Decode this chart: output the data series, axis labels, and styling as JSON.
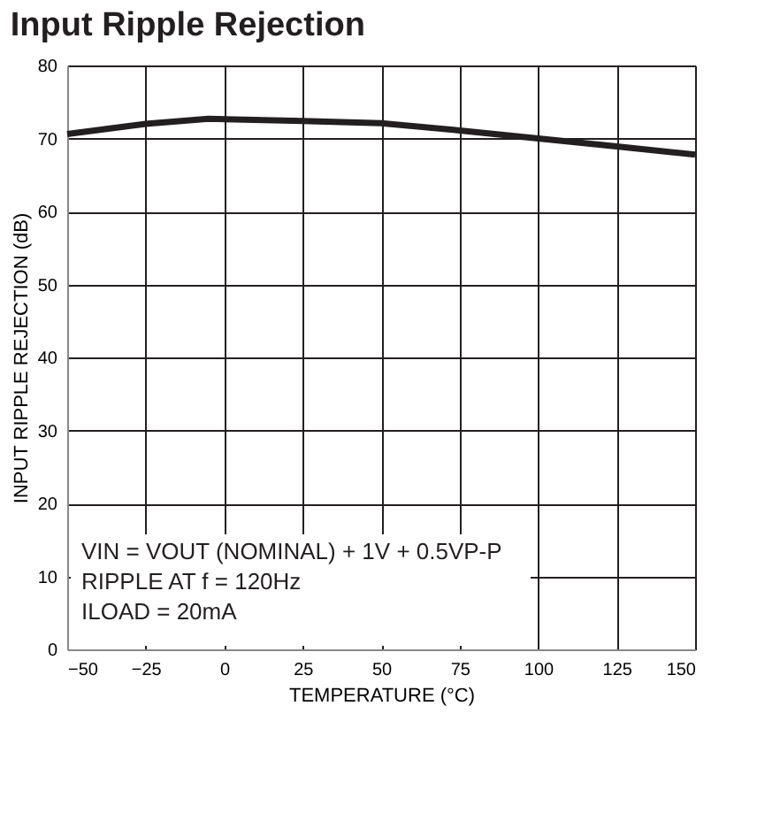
{
  "chart_data": {
    "type": "line",
    "title": "Input Ripple Rejection",
    "xlabel": "TEMPERATURE (°C)",
    "ylabel": "INPUT RIPPLE REJECTION (dB)",
    "x": [
      -50,
      -25,
      -5,
      25,
      50,
      75,
      100,
      125,
      150
    ],
    "series": [
      {
        "color": "#231f20",
        "values": [
          70.6,
          72.0,
          72.7,
          72.4,
          72.1,
          71.1,
          70.0,
          68.9,
          67.8
        ]
      }
    ],
    "xlim": [
      -50,
      150
    ],
    "xticks": [
      {
        "value": -50,
        "label": "−50"
      },
      {
        "value": -25,
        "label": "−25"
      },
      0,
      25,
      50,
      75,
      100,
      125,
      150
    ],
    "ylim": [
      0,
      80
    ],
    "yticks": [
      0,
      10,
      20,
      30,
      40,
      50,
      60,
      70,
      80
    ],
    "grid": true,
    "marker": "none",
    "line_style": "solid",
    "annotations": [
      "VIN = VOUT (NOMINAL) + 1V + 0.5VP-P",
      "RIPPLE AT f = 120Hz",
      "ILOAD = 20mA"
    ]
  }
}
